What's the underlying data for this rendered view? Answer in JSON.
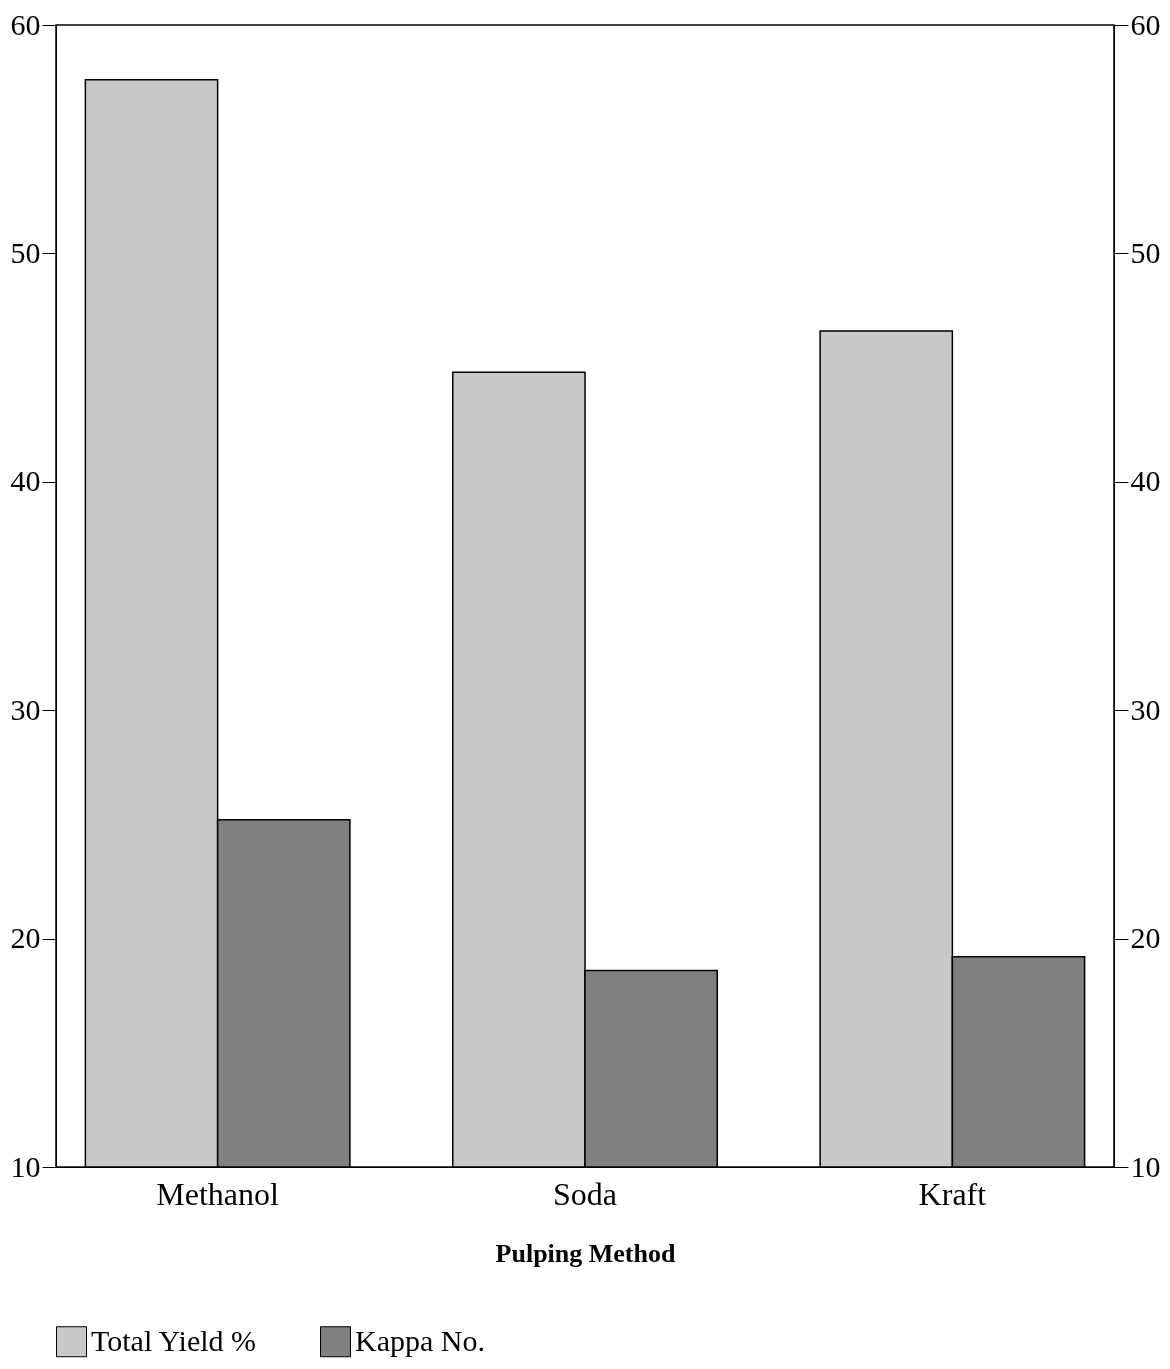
{
  "chart_data": {
    "type": "bar",
    "xlabel": "Pulping Method",
    "categories": [
      "Methanol",
      "Soda",
      "Kraft"
    ],
    "series": [
      {
        "name": "Total Yield %",
        "color": "#c8c8c8",
        "values": [
          57.6,
          44.8,
          46.6
        ]
      },
      {
        "name": "Kappa No.",
        "color": "#808080",
        "values": [
          25.2,
          18.6,
          19.2
        ]
      }
    ],
    "ylim": [
      10,
      60
    ],
    "yticks": [
      10,
      20,
      30,
      40,
      50,
      60
    ],
    "y2lim": [
      10,
      60
    ],
    "y2ticks": [
      10,
      20,
      30,
      40,
      50,
      60
    ],
    "grid": false,
    "legend": "bottom"
  }
}
